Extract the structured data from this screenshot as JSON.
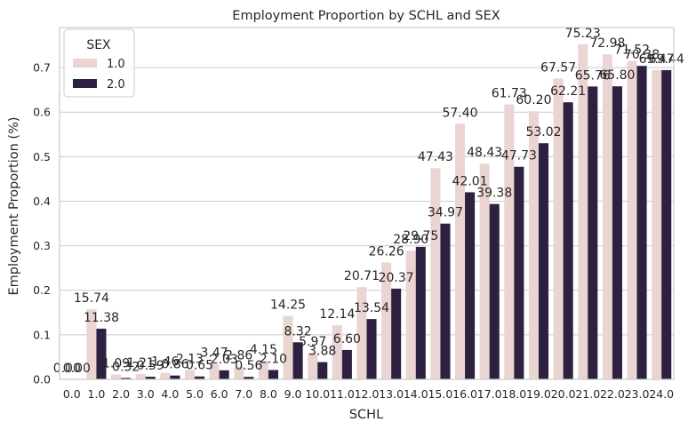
{
  "chart_data": {
    "type": "bar",
    "title": "Employment Proportion by SCHL and SEX",
    "xlabel": "SCHL",
    "ylabel": "Employment Proportion (%)",
    "ylim": [
      0,
      0.79
    ],
    "yticks": [
      "0.0",
      "0.1",
      "0.2",
      "0.3",
      "0.4",
      "0.5",
      "0.6",
      "0.7"
    ],
    "grid": "horizontal",
    "legend": {
      "title": "SEX",
      "placement": "top-left"
    },
    "categories": [
      "0.0",
      "1.0",
      "2.0",
      "3.0",
      "4.0",
      "5.0",
      "6.0",
      "7.0",
      "8.0",
      "9.0",
      "10.0",
      "11.0",
      "12.0",
      "13.0",
      "14.0",
      "15.0",
      "16.0",
      "17.0",
      "18.0",
      "19.0",
      "20.0",
      "21.0",
      "22.0",
      "23.0",
      "24.0"
    ],
    "series": [
      {
        "name": "1.0",
        "color": "#ead5d2",
        "values": [
          0.0,
          0.1574,
          0.0109,
          0.0121,
          0.0146,
          0.0213,
          0.0347,
          0.0286,
          0.0415,
          0.1425,
          0.0597,
          0.1214,
          0.2071,
          0.2626,
          0.289,
          0.4743,
          0.574,
          0.4843,
          0.6173,
          0.602,
          0.6757,
          0.7523,
          0.7298,
          0.7152,
          0.6947
        ],
        "labels": [
          "0.00",
          "15.74",
          "1.09",
          "1.21",
          "1.46",
          "2.13",
          "3.47",
          "2.86",
          "4.15",
          "14.25",
          "5.97",
          "12.14",
          "20.71",
          "26.26",
          "28.90",
          "47.43",
          "57.40",
          "48.43",
          "61.73",
          "60.20",
          "67.57",
          "75.23",
          "72.98",
          "71.52",
          "69.47"
        ]
      },
      {
        "name": "2.0",
        "color": "#2d2040",
        "values": [
          0.0,
          0.1138,
          0.0032,
          0.0059,
          0.0086,
          0.0065,
          0.0203,
          0.0056,
          0.021,
          0.0832,
          0.0388,
          0.066,
          0.1354,
          0.2037,
          0.2975,
          0.3497,
          0.4201,
          0.3938,
          0.4773,
          0.5302,
          0.6221,
          0.6576,
          0.658,
          0.7038,
          0.6944
        ],
        "labels": [
          "0.00",
          "11.38",
          "0.32",
          "0.59",
          "0.86",
          "0.65",
          "2.03",
          "0.56",
          "2.10",
          "8.32",
          "3.88",
          "6.60",
          "13.54",
          "20.37",
          "29.75",
          "34.97",
          "42.01",
          "39.38",
          "47.73",
          "53.02",
          "62.21",
          "65.76",
          "65.80",
          "70.38",
          "69.44"
        ]
      }
    ]
  }
}
